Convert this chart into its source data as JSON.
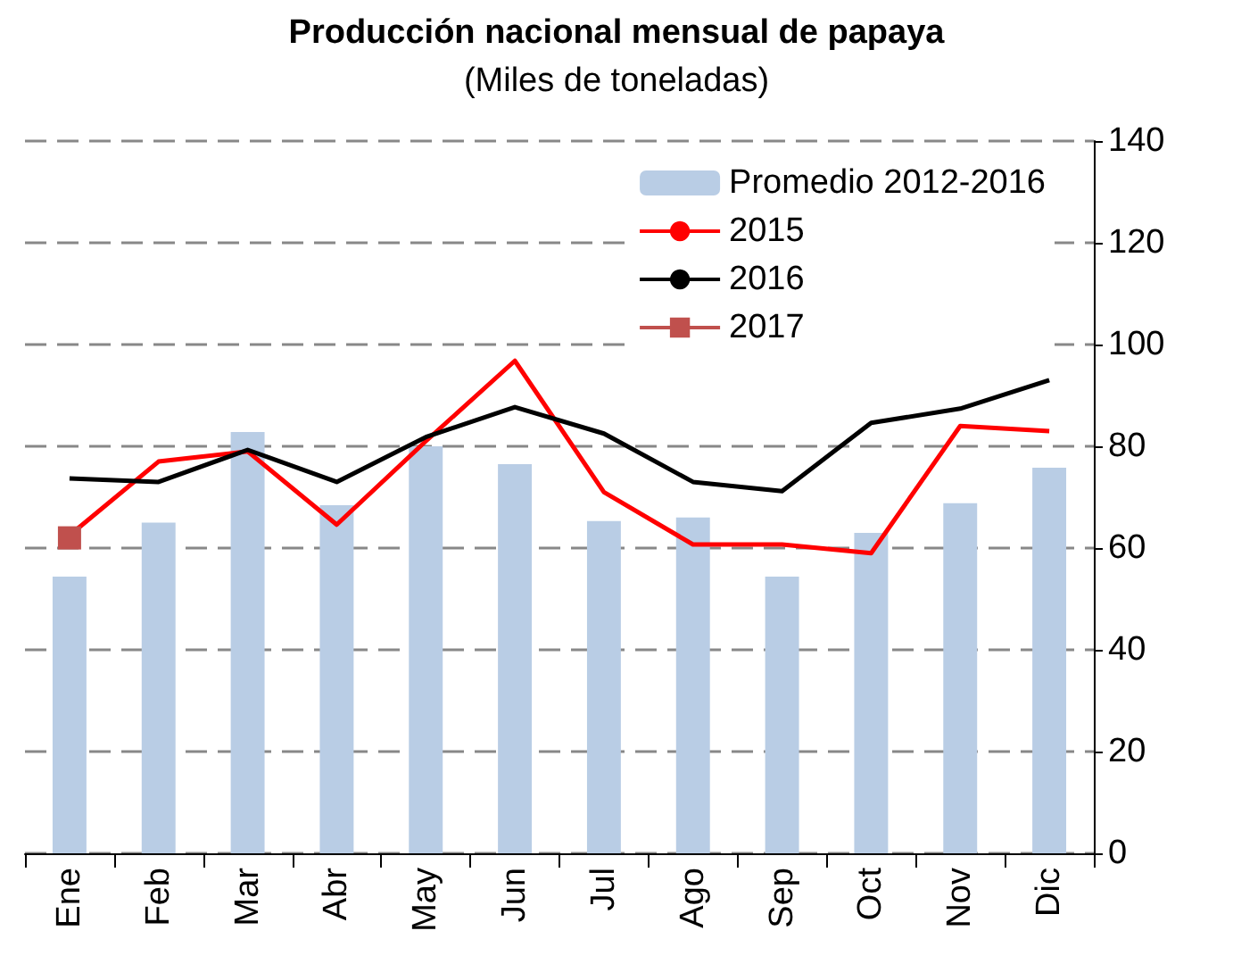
{
  "chart_data": {
    "type": "bar",
    "title": "Producción nacional mensual de papaya",
    "subtitle": "(Miles de toneladas)",
    "categories": [
      "Ene",
      "Feb",
      "Mar",
      "Abr",
      "May",
      "Jun",
      "Jul",
      "Ago",
      "Sep",
      "Oct",
      "Nov",
      "Dic"
    ],
    "series": [
      {
        "name": "Promedio 2012-2016",
        "color": "#b9cde5",
        "values": [
          54.4,
          65,
          82.8,
          68.4,
          80,
          76.5,
          65.3,
          66,
          54.4,
          63,
          68.8,
          75.8
        ]
      },
      {
        "name": "2015",
        "type": "line",
        "color": "#ff0000",
        "marker": "none",
        "values": [
          62.5,
          77,
          79,
          64.6,
          81,
          96.8,
          71,
          60.7,
          60.7,
          59,
          84,
          83
        ]
      },
      {
        "name": "2016",
        "type": "line",
        "color": "#000000",
        "marker": "none",
        "values": [
          73.7,
          73,
          79.3,
          73,
          81.8,
          87.7,
          82.5,
          73,
          71.2,
          84.6,
          87.4,
          93
        ]
      },
      {
        "name": "2017",
        "type": "line",
        "color": "#c0504d",
        "marker": "square",
        "values": [
          62,
          null,
          null,
          null,
          null,
          null,
          null,
          null,
          null,
          null,
          null,
          null
        ]
      }
    ],
    "ylim": [
      0,
      140
    ],
    "yticks": [
      0,
      20,
      40,
      60,
      80,
      100,
      120,
      140
    ],
    "grid": "y",
    "legend": "top right",
    "line_style": "solid"
  }
}
